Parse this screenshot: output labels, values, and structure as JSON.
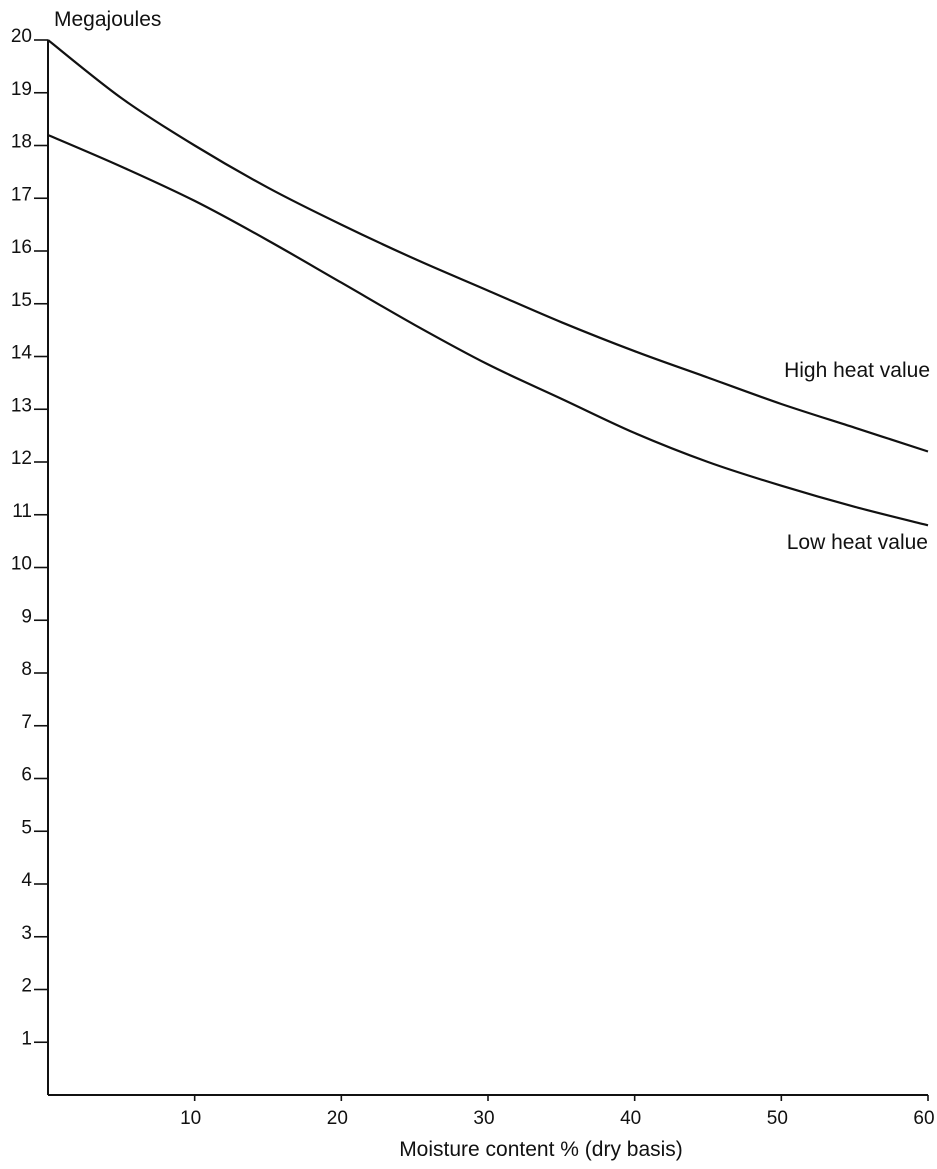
{
  "chart_data": {
    "type": "line",
    "title": "",
    "ylabel": "Megajoules",
    "xlabel": "Moisture content % (dry basis)",
    "xlim": [
      0,
      60
    ],
    "ylim": [
      0,
      20
    ],
    "x_ticks": [
      10,
      20,
      30,
      40,
      50,
      60
    ],
    "y_ticks": [
      1,
      2,
      3,
      4,
      5,
      6,
      7,
      8,
      9,
      10,
      11,
      12,
      13,
      14,
      15,
      16,
      17,
      18,
      19,
      20
    ],
    "grid": false,
    "series": [
      {
        "name": "High heat value",
        "x": [
          0,
          5,
          10,
          15,
          20,
          25,
          30,
          35,
          40,
          45,
          50,
          55,
          60
        ],
        "values": [
          20.0,
          18.9,
          18.0,
          17.2,
          16.5,
          15.85,
          15.25,
          14.65,
          14.1,
          13.6,
          13.1,
          12.65,
          12.2
        ]
      },
      {
        "name": "Low heat value",
        "x": [
          0,
          5,
          10,
          15,
          20,
          25,
          30,
          35,
          40,
          45,
          50,
          55,
          60
        ],
        "values": [
          18.2,
          17.6,
          16.95,
          16.2,
          15.4,
          14.6,
          13.85,
          13.2,
          12.55,
          12.0,
          11.55,
          11.15,
          10.8
        ]
      }
    ]
  }
}
